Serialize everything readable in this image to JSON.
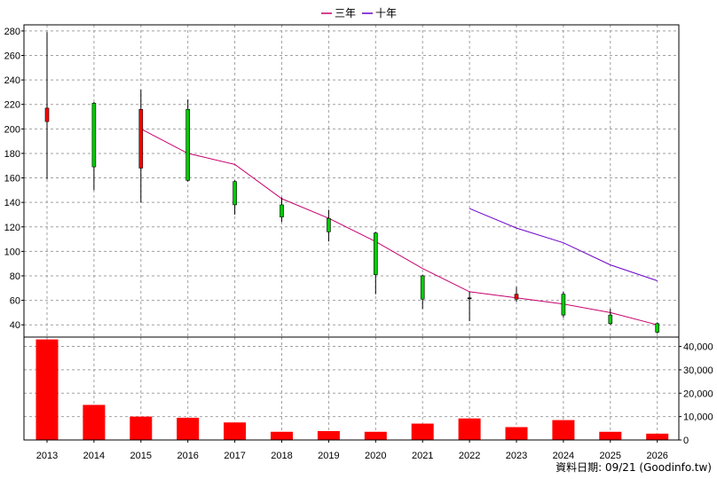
{
  "chart_data": {
    "type": "candlestick",
    "grid": true,
    "legend": [
      {
        "name": "三年",
        "color": "#c8006e"
      },
      {
        "name": "十年",
        "color": "#6a00c8"
      }
    ],
    "years": [
      "2013",
      "2014",
      "2015",
      "2016",
      "2017",
      "2018",
      "2019",
      "2020",
      "2021",
      "2022",
      "2023",
      "2024",
      "2025",
      "2026"
    ],
    "price_axis": {
      "min": 30,
      "max": 285,
      "ticks": [
        40,
        60,
        80,
        100,
        120,
        140,
        160,
        180,
        200,
        220,
        240,
        260,
        280
      ],
      "tick_labels": [
        "40",
        "60",
        "80",
        "100",
        "120",
        "140",
        "160",
        "180",
        "200",
        "220",
        "240",
        "260",
        "280"
      ]
    },
    "volume_axis": {
      "min": 0,
      "max": 44000,
      "ticks": [
        0,
        10000,
        20000,
        30000,
        40000
      ],
      "tick_labels": [
        "0",
        "10,000",
        "20,000",
        "30,000",
        "40,000"
      ]
    },
    "colors": {
      "up": "#ff0000",
      "down": "#00cc00",
      "volume": "#ff0000",
      "grid": "#a0a0a0"
    },
    "candles": [
      {
        "year": "2013",
        "open": 206,
        "close": 217,
        "high": 279,
        "low": 159
      },
      {
        "year": "2014",
        "open": 221,
        "close": 169,
        "high": 222,
        "low": 150
      },
      {
        "year": "2015",
        "open": 168,
        "close": 216,
        "high": 232,
        "low": 140
      },
      {
        "year": "2016",
        "open": 216,
        "close": 158,
        "high": 224,
        "low": 157
      },
      {
        "year": "2017",
        "open": 157,
        "close": 138,
        "high": 158,
        "low": 130
      },
      {
        "year": "2018",
        "open": 138,
        "close": 128,
        "high": 144,
        "low": 124
      },
      {
        "year": "2019",
        "open": 127,
        "close": 116,
        "high": 134,
        "low": 108
      },
      {
        "year": "2020",
        "open": 115,
        "close": 81,
        "high": 116,
        "low": 65
      },
      {
        "year": "2021",
        "open": 80,
        "close": 61,
        "high": 81,
        "low": 53
      },
      {
        "year": "2022",
        "open": 62,
        "close": 62,
        "high": 67,
        "low": 43
      },
      {
        "year": "2023",
        "open": 61,
        "close": 65,
        "high": 71,
        "low": 59
      },
      {
        "year": "2024",
        "open": 65,
        "close": 48,
        "high": 67,
        "low": 46
      },
      {
        "year": "2025",
        "open": 48,
        "close": 41,
        "high": 53,
        "low": 40
      },
      {
        "year": "2026",
        "open": 41,
        "close": 34,
        "high": 42,
        "low": 33
      }
    ],
    "series": [
      {
        "name": "三年",
        "color": "#c8006e",
        "values": [
          null,
          null,
          200,
          180,
          171,
          143,
          127,
          108,
          86,
          67,
          62,
          57,
          50,
          40
        ]
      },
      {
        "name": "十年",
        "color": "#6a00c8",
        "values": [
          null,
          null,
          null,
          null,
          null,
          null,
          null,
          null,
          null,
          135,
          119,
          107,
          89,
          76
        ]
      }
    ],
    "volume": [
      43000,
      15000,
      10000,
      9500,
      7500,
      3500,
      3800,
      3500,
      7000,
      9200,
      5500,
      8500,
      3500,
      2700
    ]
  },
  "footer": "資料日期: 09/21 (Goodinfo.tw)"
}
